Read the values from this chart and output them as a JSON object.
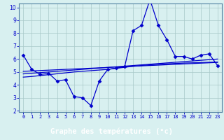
{
  "x": [
    0,
    1,
    2,
    3,
    4,
    5,
    6,
    7,
    8,
    9,
    10,
    11,
    12,
    13,
    14,
    15,
    16,
    17,
    18,
    19,
    20,
    21,
    22,
    23
  ],
  "main_line": [
    6.3,
    5.2,
    4.8,
    4.9,
    4.3,
    4.4,
    3.1,
    3.0,
    2.4,
    4.3,
    5.2,
    5.3,
    5.4,
    8.2,
    8.6,
    10.6,
    8.6,
    7.5,
    6.2,
    6.2,
    6.0,
    6.3,
    6.4,
    5.5
  ],
  "trend_line1": [
    5.05,
    5.08,
    5.11,
    5.14,
    5.17,
    5.2,
    5.23,
    5.26,
    5.29,
    5.32,
    5.35,
    5.38,
    5.41,
    5.44,
    5.47,
    5.5,
    5.53,
    5.56,
    5.59,
    5.62,
    5.65,
    5.68,
    5.71,
    5.74
  ],
  "trend_line2": [
    4.85,
    4.9,
    4.95,
    5.0,
    5.05,
    5.1,
    5.15,
    5.2,
    5.25,
    5.3,
    5.35,
    5.4,
    5.45,
    5.5,
    5.55,
    5.6,
    5.65,
    5.7,
    5.75,
    5.8,
    5.85,
    5.9,
    5.95,
    6.0
  ],
  "trend_line3": [
    4.6,
    4.65,
    4.72,
    4.79,
    4.86,
    4.93,
    5.0,
    5.05,
    5.1,
    5.15,
    5.2,
    5.28,
    5.36,
    5.44,
    5.5,
    5.56,
    5.6,
    5.63,
    5.66,
    5.69,
    5.71,
    5.73,
    5.75,
    5.77
  ],
  "line_color": "#0000CC",
  "bg_color": "#D8F0F0",
  "grid_color": "#A8C8C8",
  "spine_color": "#5080A0",
  "xlabel": "Graphe des températures (°c)",
  "xlabel_bg": "#3060A0",
  "xlabel_color": "#FFFFFF",
  "ylim": [
    2,
    10
  ],
  "xlim": [
    -0.5,
    23.5
  ],
  "yticks": [
    2,
    3,
    4,
    5,
    6,
    7,
    8,
    9,
    10
  ],
  "xticks": [
    0,
    1,
    2,
    3,
    4,
    5,
    6,
    7,
    8,
    9,
    10,
    11,
    12,
    13,
    14,
    15,
    16,
    17,
    18,
    19,
    20,
    21,
    22,
    23
  ]
}
